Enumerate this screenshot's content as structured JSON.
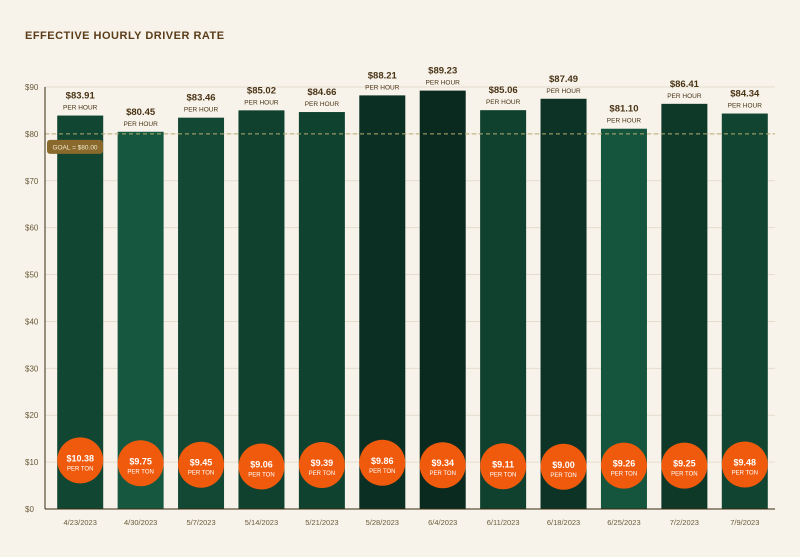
{
  "chart_data": {
    "type": "bar",
    "title": "EFFECTIVE HOURLY DRIVER RATE",
    "subtitle": "",
    "categories": [
      "4/23/2023",
      "4/30/2023",
      "5/7/2023",
      "5/14/2023",
      "5/21/2023",
      "5/28/2023",
      "6/4/2023",
      "6/11/2023",
      "6/18/2023",
      "6/25/2023",
      "7/2/2023",
      "7/9/2023"
    ],
    "series": [
      {
        "values": [
          83.91,
          80.45,
          83.46,
          85.02,
          84.66,
          88.21,
          89.23,
          85.06,
          87.49,
          81.1,
          86.41,
          84.34
        ],
        "labels": [
          "$83.91",
          "$80.45",
          "$83.46",
          "$85.02",
          "$84.66",
          "$88.21",
          "$89.23",
          "$85.06",
          "$87.49",
          "$81.10",
          "$86.41",
          "$84.34"
        ],
        "unit_label": "PER HOUR"
      },
      {
        "values": [
          10.38,
          9.75,
          9.45,
          9.06,
          9.39,
          9.86,
          9.34,
          9.11,
          9.0,
          9.26,
          9.25,
          9.48
        ],
        "labels": [
          "$10.38",
          "$9.75",
          "$9.45",
          "$9.06",
          "$9.39",
          "$9.86",
          "$9.34",
          "$9.11",
          "$9.00",
          "$9.26",
          "$9.25",
          "$9.48"
        ],
        "unit_label": "PER TON"
      }
    ],
    "ylim": [
      0,
      90
    ],
    "yticks": [
      0,
      10,
      20,
      30,
      40,
      50,
      60,
      70,
      80,
      90
    ],
    "ytick_labels": [
      "$0",
      "$10",
      "$20",
      "$30",
      "$40",
      "$50",
      "$60",
      "$70",
      "$80",
      "$90"
    ],
    "goal": {
      "value": 80,
      "label": "GOAL = $80.00"
    },
    "grid": true,
    "colors": {
      "bar": "#0f4a35",
      "bar_light": "#16583f",
      "bar_dark": "#0a2a1f",
      "circle": "#f05a0d",
      "goal_line": "#b7ad6e",
      "goal_badge": "#8a6a2c",
      "grid": "#e4ddce",
      "axis": "#3a2a10"
    }
  }
}
